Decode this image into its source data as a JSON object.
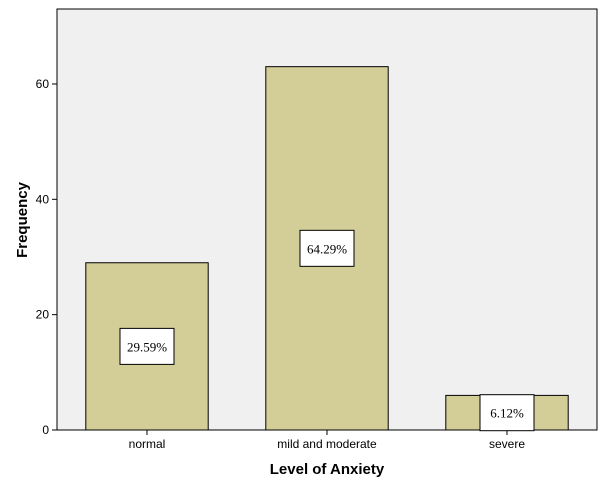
{
  "chart_data": {
    "type": "bar",
    "categories": [
      "normal",
      "mild and moderate",
      "severe"
    ],
    "values": [
      29,
      63,
      6
    ],
    "data_labels": [
      "29.59%",
      "64.29%",
      "6.12%"
    ],
    "title": "",
    "xlabel": "Level of Anxiety",
    "ylabel": "Frequency",
    "ylim": [
      0,
      73
    ],
    "yticks": [
      0,
      20,
      40,
      60
    ],
    "grid": false,
    "legend": "none"
  },
  "colors": {
    "plot_background": "#f0f0f0",
    "bar_fill": "#d3ce97",
    "bar_stroke": "#000000",
    "label_box_fill": "#ffffff"
  }
}
